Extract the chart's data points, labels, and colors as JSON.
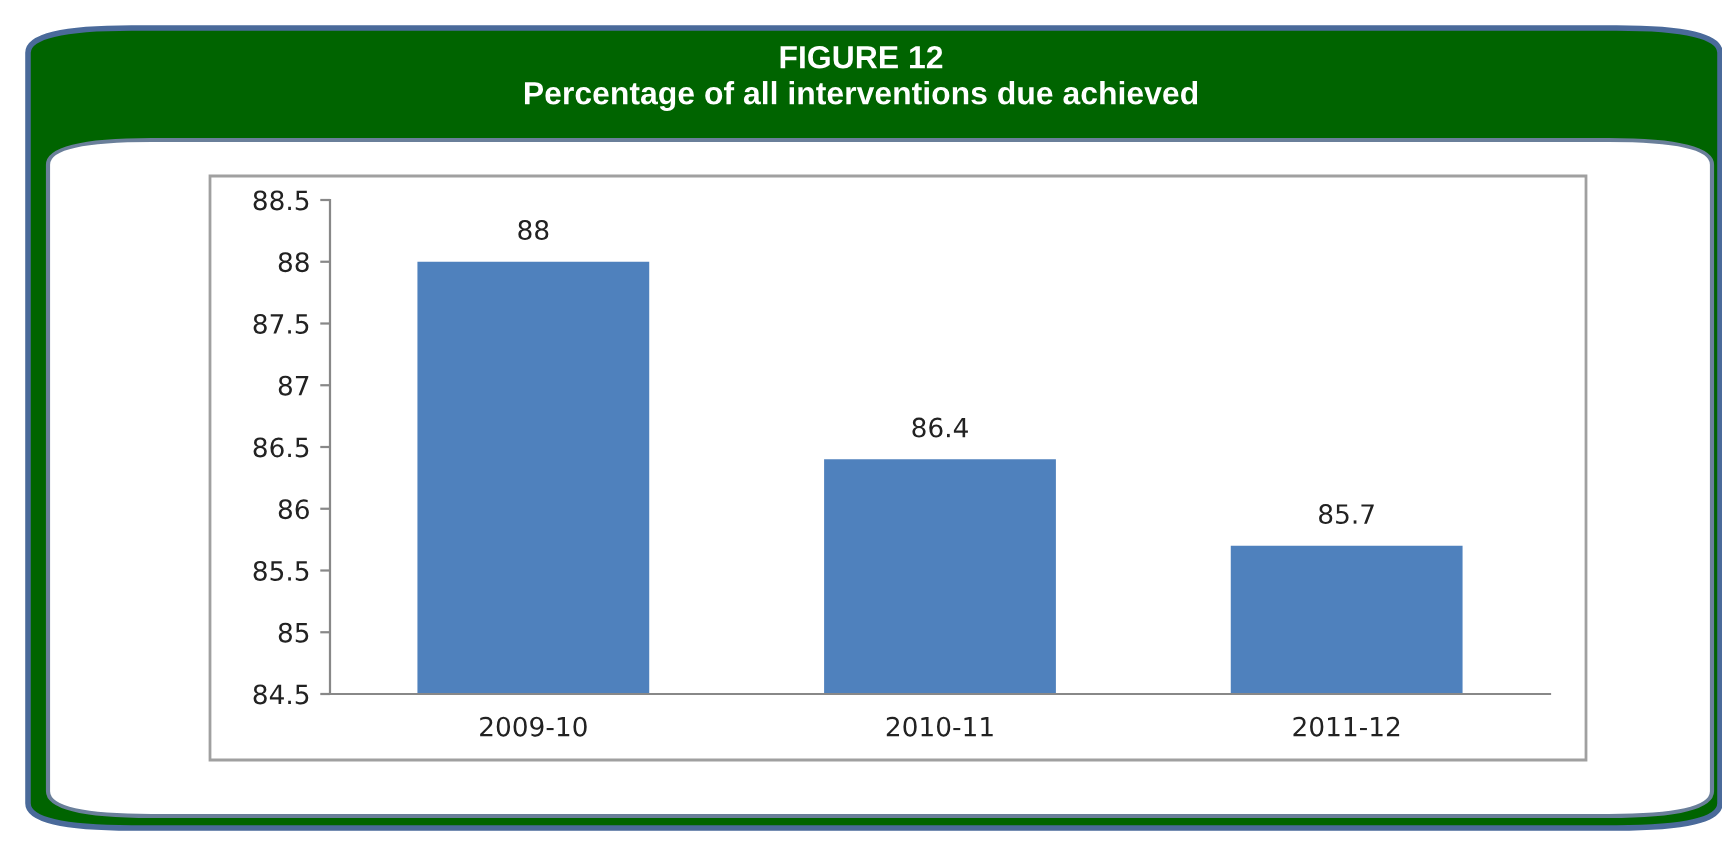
{
  "chart_data": {
    "type": "bar",
    "title": "FIGURE 12",
    "subtitle": "Percentage of all interventions due achieved",
    "categories": [
      "2009-10",
      "2010-11",
      "2011-12"
    ],
    "values": [
      88,
      86.4,
      85.7
    ],
    "color": "#4f81bd",
    "ylim": [
      84.5,
      88.5
    ],
    "yticks": [
      84.5,
      85,
      85.5,
      86,
      86.5,
      87,
      87.5,
      88,
      88.5
    ],
    "grid": false,
    "data_labels": true
  }
}
